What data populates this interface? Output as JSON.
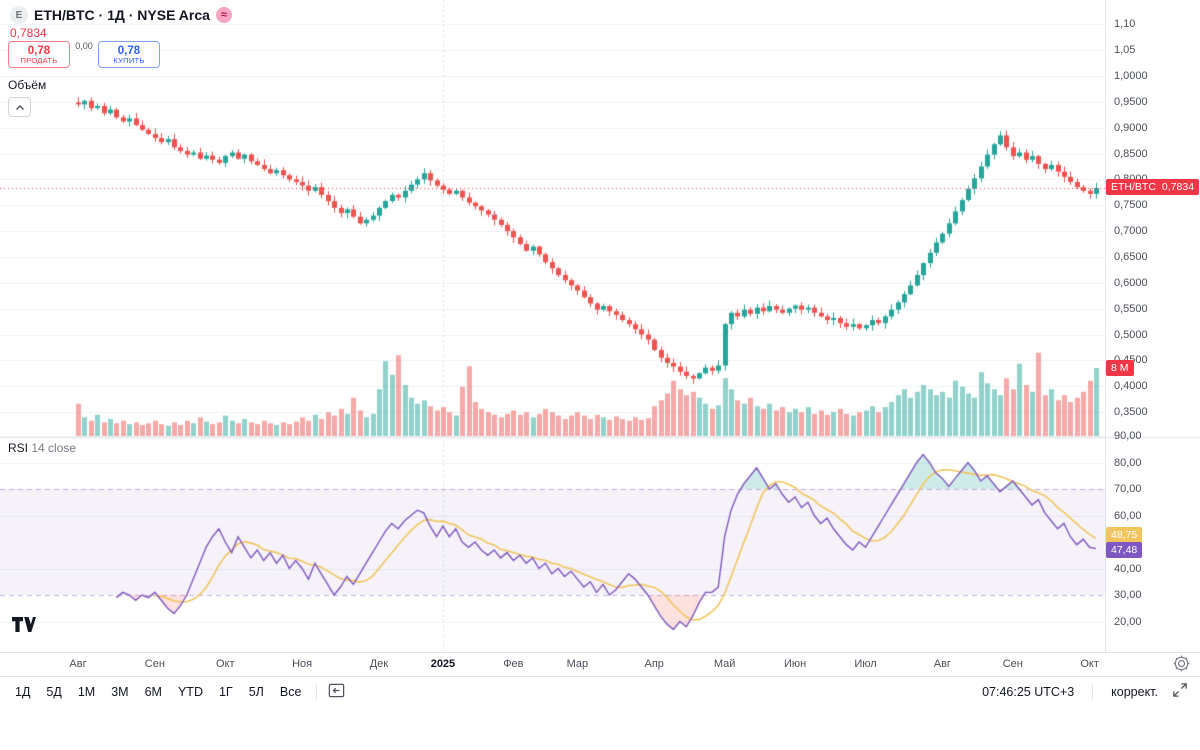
{
  "header": {
    "title": "ETH/BTC · 1Д · NYSE Arca",
    "symbol_icon_letter": "E",
    "status_icon_glyph": "≈",
    "price": "0,7834"
  },
  "trade_widget": {
    "sell_price": "0,78",
    "sell_label": "ПРОДАТЬ",
    "spread": "0,00",
    "buy_price": "0,78",
    "buy_label": "КУПИТЬ"
  },
  "indicators": {
    "volume_label": "Объём",
    "rsi_name": "RSI",
    "rsi_params": "14 close"
  },
  "price_axis": {
    "ticks": [
      {
        "label": "1,10",
        "value": 1.1
      },
      {
        "label": "1,05",
        "value": 1.05
      },
      {
        "label": "1,0000",
        "value": 1.0
      },
      {
        "label": "0,9500",
        "value": 0.95
      },
      {
        "label": "0,9000",
        "value": 0.9
      },
      {
        "label": "0,8500",
        "value": 0.85
      },
      {
        "label": "0,8000",
        "value": 0.8
      },
      {
        "label": "0,7500",
        "value": 0.75
      },
      {
        "label": "0,7000",
        "value": 0.7
      },
      {
        "label": "0,6500",
        "value": 0.65
      },
      {
        "label": "0,6000",
        "value": 0.6
      },
      {
        "label": "0,5500",
        "value": 0.55
      },
      {
        "label": "0,5000",
        "value": 0.5
      },
      {
        "label": "0,4500",
        "value": 0.45
      },
      {
        "label": "0,4000",
        "value": 0.4
      },
      {
        "label": "0,3500",
        "value": 0.35
      }
    ],
    "price_badge": {
      "symbol": "ETH/BTC",
      "value": "0,7834"
    },
    "volume_badge": "8 M"
  },
  "rsi_axis": {
    "ticks": [
      {
        "label": "90,00",
        "value": 90
      },
      {
        "label": "80,00",
        "value": 80
      },
      {
        "label": "70,00",
        "value": 70
      },
      {
        "label": "60,00",
        "value": 60
      },
      {
        "label": "40,00",
        "value": 40
      },
      {
        "label": "30,00",
        "value": 30
      },
      {
        "label": "20,00",
        "value": 20
      }
    ],
    "ma_badge": "48,75",
    "value_badge": "47,48"
  },
  "time_axis": {
    "ticks": [
      {
        "label": "Авг",
        "i": 0
      },
      {
        "label": "Сен",
        "i": 12
      },
      {
        "label": "Окт",
        "i": 23
      },
      {
        "label": "Ноя",
        "i": 35
      },
      {
        "label": "Дек",
        "i": 47
      },
      {
        "label": "2025",
        "i": 57,
        "bold": true
      },
      {
        "label": "Фев",
        "i": 68
      },
      {
        "label": "Мар",
        "i": 78
      },
      {
        "label": "Апр",
        "i": 90
      },
      {
        "label": "Май",
        "i": 101
      },
      {
        "label": "Июн",
        "i": 112
      },
      {
        "label": "Июл",
        "i": 123
      },
      {
        "label": "Авг",
        "i": 135
      },
      {
        "label": "Сен",
        "i": 146
      },
      {
        "label": "Окт",
        "i": 158
      }
    ]
  },
  "toolbar": {
    "ranges": [
      "1Д",
      "5Д",
      "1М",
      "3М",
      "6М",
      "YTD",
      "1Г",
      "5Л",
      "Все"
    ],
    "clock": "07:46:25 UTC+3",
    "adjust_label": "коррект."
  },
  "colors": {
    "up": "#26a69a",
    "down": "#ef5350",
    "accent_red": "#f23645",
    "buy_blue": "#2962ff",
    "rsi_line": "#7e57c2",
    "rsi_ma": "#f2c55c",
    "band_fill": "rgba(126,87,194,0.08)"
  },
  "chart_data": [
    {
      "type": "candlestick",
      "name": "ETH/BTC",
      "interval": "1Д",
      "exchange": "NYSE Arca",
      "last_price": 0.7834,
      "ylim": [
        0.33,
        1.12
      ],
      "closes": [
        0.945,
        0.952,
        0.938,
        0.942,
        0.928,
        0.935,
        0.92,
        0.912,
        0.918,
        0.905,
        0.896,
        0.888,
        0.88,
        0.872,
        0.878,
        0.862,
        0.855,
        0.848,
        0.852,
        0.84,
        0.846,
        0.838,
        0.832,
        0.845,
        0.852,
        0.84,
        0.848,
        0.835,
        0.828,
        0.82,
        0.812,
        0.818,
        0.808,
        0.8,
        0.795,
        0.788,
        0.778,
        0.785,
        0.77,
        0.758,
        0.745,
        0.735,
        0.742,
        0.728,
        0.715,
        0.722,
        0.73,
        0.745,
        0.758,
        0.77,
        0.765,
        0.778,
        0.79,
        0.8,
        0.812,
        0.798,
        0.788,
        0.78,
        0.772,
        0.778,
        0.765,
        0.755,
        0.748,
        0.74,
        0.732,
        0.722,
        0.712,
        0.7,
        0.688,
        0.675,
        0.662,
        0.67,
        0.655,
        0.64,
        0.628,
        0.615,
        0.605,
        0.595,
        0.585,
        0.572,
        0.56,
        0.548,
        0.555,
        0.545,
        0.538,
        0.528,
        0.52,
        0.51,
        0.5,
        0.49,
        0.47,
        0.455,
        0.445,
        0.438,
        0.428,
        0.42,
        0.415,
        0.425,
        0.436,
        0.43,
        0.44,
        0.52,
        0.542,
        0.535,
        0.548,
        0.54,
        0.552,
        0.545,
        0.555,
        0.548,
        0.542,
        0.55,
        0.556,
        0.548,
        0.552,
        0.542,
        0.535,
        0.528,
        0.532,
        0.522,
        0.515,
        0.52,
        0.512,
        0.518,
        0.528,
        0.522,
        0.535,
        0.548,
        0.562,
        0.578,
        0.595,
        0.615,
        0.638,
        0.658,
        0.678,
        0.695,
        0.715,
        0.738,
        0.76,
        0.782,
        0.802,
        0.825,
        0.848,
        0.868,
        0.885,
        0.862,
        0.845,
        0.852,
        0.838,
        0.845,
        0.83,
        0.82,
        0.828,
        0.815,
        0.805,
        0.795,
        0.785,
        0.778,
        0.772,
        0.7834
      ]
    },
    {
      "type": "bar",
      "name": "Объём",
      "unit": "M",
      "last_label": "8 M",
      "values": [
        3.8,
        2.2,
        1.8,
        2.5,
        1.6,
        2.0,
        1.5,
        1.8,
        1.4,
        1.6,
        1.3,
        1.5,
        1.8,
        1.4,
        1.2,
        1.6,
        1.3,
        1.8,
        1.5,
        2.2,
        1.7,
        1.4,
        1.6,
        2.4,
        1.8,
        1.5,
        2.0,
        1.6,
        1.4,
        1.8,
        1.5,
        1.3,
        1.6,
        1.4,
        1.7,
        2.2,
        1.8,
        2.5,
        2.0,
        2.8,
        2.4,
        3.2,
        2.6,
        4.5,
        3.0,
        2.2,
        2.6,
        5.5,
        8.8,
        7.2,
        9.5,
        6.0,
        4.5,
        3.8,
        4.2,
        3.5,
        3.0,
        3.4,
        2.8,
        2.4,
        5.8,
        8.2,
        4.0,
        3.2,
        2.8,
        2.5,
        2.2,
        2.6,
        3.0,
        2.5,
        2.8,
        2.2,
        2.6,
        3.2,
        2.8,
        2.4,
        2.0,
        2.4,
        2.8,
        2.4,
        2.0,
        2.5,
        2.2,
        1.9,
        2.3,
        2.0,
        1.8,
        2.2,
        1.9,
        2.1,
        3.5,
        4.2,
        5.0,
        6.5,
        5.5,
        4.8,
        5.2,
        4.5,
        3.8,
        3.2,
        3.6,
        6.8,
        5.5,
        4.2,
        3.8,
        4.5,
        3.5,
        3.2,
        3.8,
        3.0,
        3.4,
        2.8,
        3.2,
        2.8,
        3.4,
        2.6,
        3.0,
        2.5,
        2.8,
        3.2,
        2.6,
        2.4,
        2.8,
        3.0,
        3.5,
        2.8,
        3.4,
        4.0,
        4.8,
        5.5,
        4.5,
        5.2,
        6.0,
        5.5,
        4.8,
        5.2,
        4.5,
        6.5,
        5.8,
        5.0,
        4.5,
        7.5,
        6.2,
        5.5,
        4.8,
        6.8,
        5.5,
        8.5,
        6.0,
        5.2,
        9.8,
        4.8,
        5.5,
        4.2,
        4.8,
        4.0,
        4.5,
        5.2,
        6.5,
        8.0
      ]
    },
    {
      "type": "line",
      "name": "RSI 14 close",
      "band": [
        30,
        70
      ],
      "ylim": [
        15,
        90
      ],
      "last": 47.48,
      "ma_last": 48.75,
      "values": [
        null,
        null,
        null,
        null,
        null,
        null,
        29,
        31,
        30,
        28,
        30,
        29,
        31,
        28,
        25,
        23,
        26,
        30,
        36,
        42,
        48,
        52,
        55,
        50,
        46,
        52,
        48,
        44,
        47,
        43,
        46,
        42,
        45,
        40,
        43,
        40,
        36,
        42,
        38,
        34,
        30,
        33,
        37,
        34,
        38,
        42,
        46,
        50,
        54,
        57,
        55,
        58,
        60,
        62,
        61,
        56,
        52,
        56,
        52,
        55,
        50,
        48,
        50,
        47,
        45,
        47,
        44,
        46,
        43,
        45,
        42,
        44,
        40,
        42,
        38,
        40,
        37,
        39,
        36,
        33,
        35,
        31,
        34,
        30,
        32,
        35,
        38,
        36,
        33,
        30,
        26,
        22,
        19,
        17,
        20,
        18,
        22,
        27,
        31,
        31,
        33,
        52,
        62,
        68,
        72,
        75,
        78,
        74,
        70,
        72,
        68,
        65,
        67,
        63,
        65,
        60,
        57,
        59,
        55,
        52,
        49,
        47,
        50,
        48,
        52,
        56,
        60,
        64,
        68,
        72,
        76,
        80,
        83,
        80,
        76,
        74,
        71,
        74,
        77,
        80,
        77,
        73,
        75,
        72,
        69,
        71,
        73,
        70,
        67,
        64,
        66,
        61,
        58,
        55,
        57,
        52,
        49,
        51,
        48,
        47.48
      ]
    }
  ]
}
